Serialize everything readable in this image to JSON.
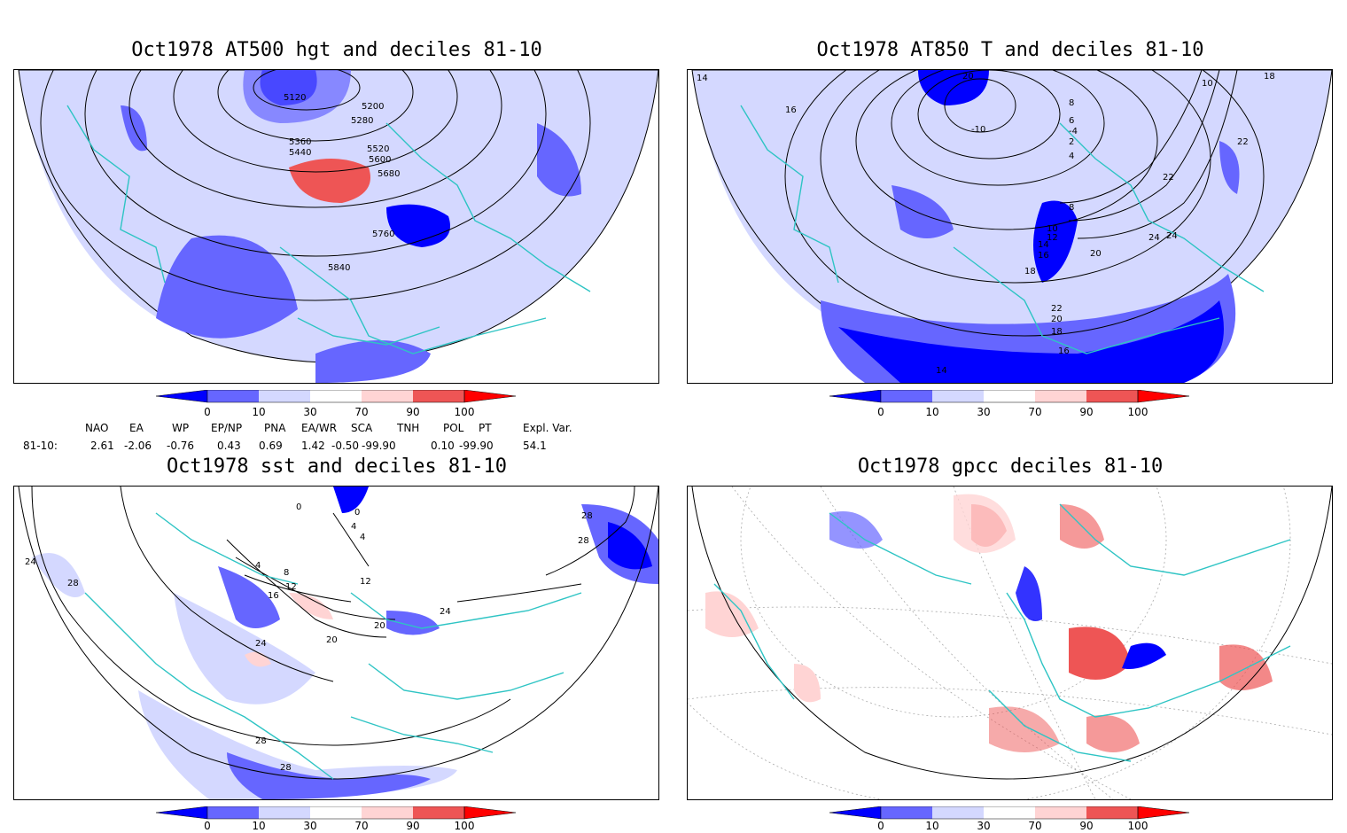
{
  "panels": [
    {
      "title": "Oct1978 AT500 hgt and deciles 81-10",
      "contour_labels": [
        "5120",
        "5200",
        "5280",
        "5360",
        "5440",
        "5520",
        "5600",
        "5680",
        "5760",
        "5840"
      ]
    },
    {
      "title": "Oct1978 AT850 T and deciles 81-10",
      "contour_labels": [
        "20",
        "18",
        "16",
        "14",
        "10",
        "8",
        "6",
        "4",
        "2",
        "-4",
        "-10",
        "22",
        "24",
        "20",
        "18",
        "16",
        "14",
        "12",
        "10",
        "8",
        "22",
        "20",
        "18",
        "16",
        "14",
        "24",
        "22"
      ]
    },
    {
      "title": "Oct1978 sst and deciles 81-10",
      "contour_labels": [
        "24",
        "28",
        "0",
        "4",
        "8",
        "12",
        "16",
        "20",
        "24",
        "28",
        "28",
        "28",
        "28",
        "20",
        "24",
        "4",
        "0",
        "4",
        "12"
      ]
    },
    {
      "title": "Oct1978 gpcc deciles 81-10",
      "contour_labels": []
    }
  ],
  "colorbar": {
    "ticks": [
      "0",
      "10",
      "30",
      "70",
      "90",
      "100"
    ],
    "colors": [
      "#0000ff",
      "#6666ff",
      "#d4d8ff",
      "#ffffff",
      "#ffd4d4",
      "#ee5555",
      "#ff0000"
    ]
  },
  "indices": {
    "headers": [
      "NAO",
      "EA",
      "WP",
      "EP/NP",
      "PNA",
      "EA/WR",
      "SCA",
      "TNH",
      "POL",
      "PT",
      "Expl. Var."
    ],
    "row_label": "81-10:",
    "values": [
      "2.61",
      "-2.06",
      "-0.76",
      "0.43",
      "0.69",
      "1.42",
      "-0.50",
      "-99.90",
      "0.10",
      "-99.90",
      "54.1"
    ]
  },
  "colors": {
    "coast": "#2ec4c4",
    "contour": "#000000",
    "grid": "#888888"
  }
}
